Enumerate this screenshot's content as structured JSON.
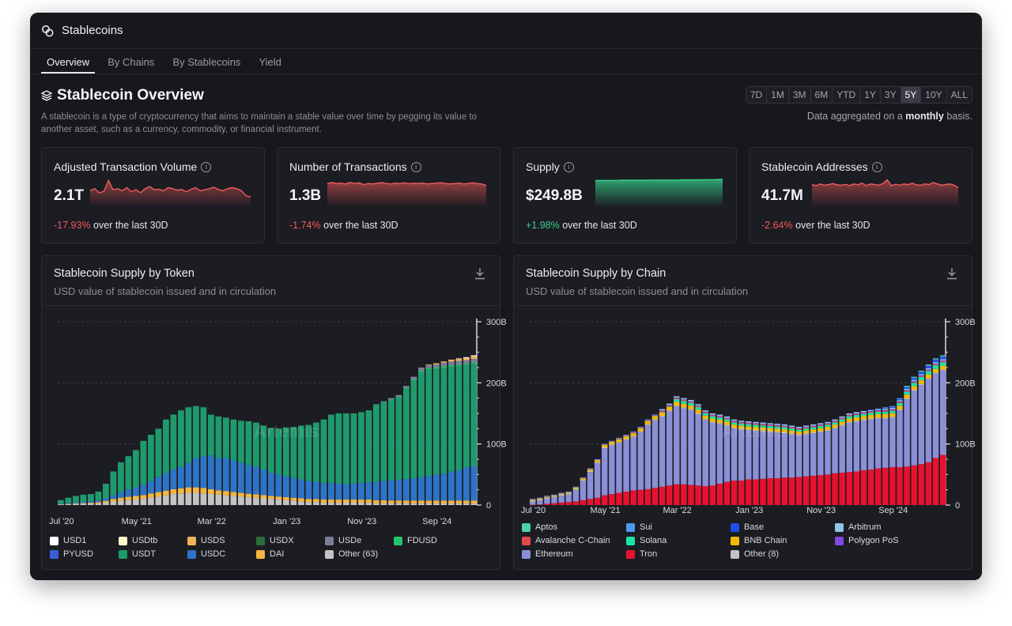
{
  "window": {
    "title": "Stablecoins"
  },
  "tabs": [
    "Overview",
    "By Chains",
    "By Stablecoins",
    "Yield"
  ],
  "active_tab": "Overview",
  "header": {
    "title": "Stablecoin Overview",
    "description": "A stablecoin is a type of cryptocurrency that aims to maintain a stable value over time by pegging its value to another asset, such as a currency, commodity, or financial instrument.",
    "ranges": [
      "7D",
      "1M",
      "3M",
      "6M",
      "YTD",
      "1Y",
      "3Y",
      "5Y",
      "10Y",
      "ALL"
    ],
    "active_range": "5Y",
    "agg_prefix": "Data aggregated on a",
    "agg_bold": "monthly",
    "agg_suffix": "basis."
  },
  "kpis": [
    {
      "title": "Adjusted Transaction Volume",
      "value": "2.1T",
      "change": "-17.93%",
      "suffix": "over the last 30D",
      "trend": "neg",
      "spark": [
        0.45,
        0.55,
        0.35,
        0.42,
        0.95,
        0.5,
        0.55,
        0.45,
        0.6,
        0.4,
        0.5,
        0.35,
        0.55,
        0.65,
        0.5,
        0.52,
        0.45,
        0.6,
        0.55,
        0.48,
        0.5,
        0.4,
        0.52,
        0.6,
        0.45,
        0.5,
        0.55,
        0.62,
        0.5,
        0.45,
        0.55,
        0.6,
        0.55,
        0.45,
        0.2,
        0.15
      ]
    },
    {
      "title": "Number of Transactions",
      "value": "1.3B",
      "change": "-1.74%",
      "suffix": "over the last 30D",
      "trend": "neg",
      "spark": [
        0.8,
        0.85,
        0.8,
        0.82,
        0.78,
        0.85,
        0.8,
        0.83,
        0.75,
        0.8,
        0.78,
        0.82,
        0.85,
        0.8,
        0.78,
        0.82,
        0.8,
        0.84,
        0.79,
        0.82,
        0.8,
        0.83,
        0.78,
        0.8,
        0.82,
        0.84,
        0.8,
        0.78,
        0.8,
        0.82,
        0.78,
        0.8,
        0.84,
        0.8,
        0.78,
        0.7
      ]
    },
    {
      "title": "Supply",
      "value": "$249.8B",
      "change": "+1.98%",
      "suffix": "over the last 30D",
      "trend": "pos",
      "spark": [
        0.95,
        0.95,
        0.95,
        0.95,
        0.95,
        0.95,
        0.95,
        0.96,
        0.96,
        0.96,
        0.96,
        0.96,
        0.96,
        0.96,
        0.96,
        0.97,
        0.97,
        0.97,
        0.97,
        0.97,
        0.97,
        0.97,
        0.97,
        0.97,
        0.98,
        0.98,
        0.98,
        0.98,
        0.98,
        0.98,
        0.99,
        0.99,
        0.99,
        0.99,
        1.0,
        1.0
      ]
    },
    {
      "title": "Stablecoin Addresses",
      "value": "41.7M",
      "change": "-2.64%",
      "suffix": "over the last 30D",
      "trend": "neg",
      "spark": [
        0.75,
        0.7,
        0.78,
        0.72,
        0.75,
        0.8,
        0.74,
        0.72,
        0.76,
        0.7,
        0.78,
        0.74,
        0.82,
        0.7,
        0.78,
        0.75,
        0.72,
        0.8,
        0.98,
        0.7,
        0.76,
        0.72,
        0.78,
        0.75,
        0.82,
        0.74,
        0.72,
        0.78,
        0.75,
        0.85,
        0.78,
        0.72,
        0.75,
        0.78,
        0.72,
        0.6
      ]
    }
  ],
  "charts": {
    "token": {
      "title": "Stablecoin Supply by Token",
      "subtitle": "USD value of stablecoin issued and in circulation"
    },
    "chain": {
      "title": "Stablecoin Supply by Chain",
      "subtitle": "USD value of stablecoin issued and in circulation"
    }
  },
  "chart_data": [
    {
      "type": "bar",
      "title": "Stablecoin Supply by Token",
      "stacked": true,
      "x_tick_labels": [
        "Jul '20",
        "May '21",
        "Mar '22",
        "Jan '23",
        "Nov '23",
        "Sep '24"
      ],
      "y_tick_labels": [
        "0",
        "100B",
        "200B",
        "300B"
      ],
      "ylim": [
        0,
        300
      ],
      "unit": "B USD",
      "totals": [
        8,
        12,
        15,
        17,
        18,
        22,
        35,
        55,
        70,
        80,
        90,
        105,
        115,
        125,
        140,
        148,
        155,
        160,
        162,
        160,
        148,
        145,
        143,
        140,
        138,
        137,
        135,
        130,
        126,
        125,
        127,
        128,
        130,
        131,
        135,
        140,
        148,
        150,
        150,
        150,
        152,
        155,
        165,
        170,
        175,
        180,
        195,
        210,
        225,
        230,
        232,
        235,
        238,
        240,
        242,
        245
      ],
      "series": [
        {
          "name": "USD1",
          "color": "#ffffff"
        },
        {
          "name": "USDtb",
          "color": "#fff3c9"
        },
        {
          "name": "USDS",
          "color": "#f2b25a"
        },
        {
          "name": "USDX",
          "color": "#2d6e3b"
        },
        {
          "name": "USDe",
          "color": "#7b7f96"
        },
        {
          "name": "FDUSD",
          "color": "#22c76d"
        },
        {
          "name": "PYUSD",
          "color": "#3b5bdb"
        },
        {
          "name": "USDT",
          "color": "#1f9a6c"
        },
        {
          "name": "USDC",
          "color": "#2d74c7"
        },
        {
          "name": "DAI",
          "color": "#f4b63f"
        },
        {
          "name": "Other (63)",
          "color": "#c3c3c3"
        }
      ],
      "usdc": [
        0.5,
        1,
        1.5,
        2,
        2.5,
        3,
        4,
        6,
        9,
        12,
        14,
        17,
        20,
        25,
        29,
        32,
        35,
        40,
        48,
        52,
        55,
        53,
        54,
        51,
        49,
        47,
        45,
        42,
        38,
        36,
        34,
        33,
        31,
        29,
        28,
        27,
        27,
        26,
        25,
        26,
        27,
        28,
        30,
        32,
        33,
        34,
        35,
        36,
        38,
        40,
        42,
        44,
        47,
        50,
        54,
        56
      ],
      "dai": [
        0.5,
        0.8,
        1,
        1.2,
        1.5,
        2,
        3,
        4,
        5,
        5.5,
        6,
        6.5,
        7,
        7.2,
        7.5,
        8,
        8.5,
        9,
        9,
        9,
        8,
        7,
        7,
        6.5,
        6,
        5.5,
        5.5,
        5.2,
        5,
        5,
        5,
        5,
        5,
        5,
        5,
        5,
        5,
        5,
        5,
        5,
        5,
        5,
        5,
        5,
        4.5,
        4.5,
        4.5,
        4.5,
        4.5,
        4.5,
        4.5,
        4.5,
        4.5,
        4.5,
        4.5,
        4.5
      ],
      "other": [
        1,
        1.5,
        2,
        2,
        2.5,
        3,
        4,
        6,
        7,
        8,
        9,
        10,
        12,
        14,
        16,
        18,
        19,
        20,
        20,
        19,
        18,
        17,
        16,
        15,
        14,
        13,
        12,
        11,
        10,
        9,
        8,
        7,
        6,
        5,
        5,
        4,
        4,
        4,
        4,
        4,
        4,
        4,
        3,
        3,
        3,
        3,
        3,
        3,
        3,
        3,
        3,
        3,
        3,
        3,
        3,
        3
      ],
      "fdusd": [
        0,
        0,
        0,
        0,
        0,
        0,
        0,
        0,
        0,
        0,
        0,
        0,
        0,
        0,
        0,
        0,
        0,
        0,
        0,
        0,
        0,
        0,
        0,
        0,
        0,
        0,
        0,
        0,
        0,
        0,
        0,
        0,
        0,
        0,
        0,
        0,
        0,
        0,
        0,
        0,
        0,
        0,
        0,
        0,
        1,
        1,
        1,
        2,
        2,
        2,
        2,
        2,
        2,
        2,
        2,
        2
      ],
      "usde": [
        0,
        0,
        0,
        0,
        0,
        0,
        0,
        0,
        0,
        0,
        0,
        0,
        0,
        0,
        0,
        0,
        0,
        0,
        0,
        0,
        0,
        0,
        0,
        0,
        0,
        0,
        0,
        0,
        0,
        0,
        0,
        0,
        0,
        0,
        0,
        0,
        0,
        0,
        0,
        0,
        0,
        0,
        0,
        1,
        2,
        3,
        3,
        4,
        5,
        5,
        5,
        6,
        6,
        6,
        6,
        6
      ],
      "usds": [
        0,
        0,
        0,
        0,
        0,
        0,
        0,
        0,
        0,
        0,
        0,
        0,
        0,
        0,
        0,
        0,
        0,
        0,
        0,
        0,
        0,
        0,
        0,
        0,
        0,
        0,
        0,
        0,
        0,
        0,
        0,
        0,
        0,
        0,
        0,
        0,
        0,
        0,
        0,
        0,
        0,
        0,
        0,
        0,
        0,
        0,
        0,
        0,
        0,
        1,
        2,
        2,
        3,
        3,
        3,
        4
      ],
      "usdtb": [
        0,
        0,
        0,
        0,
        0,
        0,
        0,
        0,
        0,
        0,
        0,
        0,
        0,
        0,
        0,
        0,
        0,
        0,
        0,
        0,
        0,
        0,
        0,
        0,
        0,
        0,
        0,
        0,
        0,
        0,
        0,
        0,
        0,
        0,
        0,
        0,
        0,
        0,
        0,
        0,
        0,
        0,
        0,
        0,
        0,
        0,
        0,
        0,
        0,
        0,
        0,
        0,
        0,
        1,
        1,
        1
      ],
      "usd1": [
        0,
        0,
        0,
        0,
        0,
        0,
        0,
        0,
        0,
        0,
        0,
        0,
        0,
        0,
        0,
        0,
        0,
        0,
        0,
        0,
        0,
        0,
        0,
        0,
        0,
        0,
        0,
        0,
        0,
        0,
        0,
        0,
        0,
        0,
        0,
        0,
        0,
        0,
        0,
        0,
        0,
        0,
        0,
        0,
        0,
        0,
        0,
        0,
        0,
        0,
        0,
        0,
        0,
        0,
        1,
        1
      ]
    },
    {
      "type": "bar",
      "title": "Stablecoin Supply by Chain",
      "stacked": true,
      "x_tick_labels": [
        "Jul '20",
        "May '21",
        "Mar '22",
        "Jan '23",
        "Nov '23",
        "Sep '24"
      ],
      "y_tick_labels": [
        "0",
        "100B",
        "200B",
        "300B"
      ],
      "ylim": [
        0,
        300
      ],
      "unit": "B USD",
      "totals": [
        10,
        12,
        15,
        17,
        20,
        22,
        30,
        45,
        60,
        75,
        100,
        105,
        110,
        115,
        120,
        128,
        140,
        148,
        157,
        166,
        178,
        175,
        172,
        165,
        155,
        150,
        148,
        145,
        140,
        138,
        137,
        136,
        135,
        134,
        133,
        132,
        130,
        128,
        130,
        132,
        134,
        136,
        140,
        145,
        150,
        152,
        154,
        156,
        158,
        160,
        162,
        175,
        195,
        210,
        220,
        230,
        240,
        245
      ],
      "series": [
        {
          "name": "Aptos",
          "color": "#4fd1a5"
        },
        {
          "name": "Sui",
          "color": "#4c9bf0"
        },
        {
          "name": "Base",
          "color": "#1f4fe8"
        },
        {
          "name": "Arbitrum",
          "color": "#8fc5e8"
        },
        {
          "name": "Avalanche C-Chain",
          "color": "#e24a4a"
        },
        {
          "name": "Solana",
          "color": "#19e3a6"
        },
        {
          "name": "BNB Chain",
          "color": "#f2b90c"
        },
        {
          "name": "Polygon PoS",
          "color": "#8247e5"
        },
        {
          "name": "Ethereum",
          "color": "#8a8fd6"
        },
        {
          "name": "Tron",
          "color": "#e8112d"
        },
        {
          "name": "Other (8)",
          "color": "#c3c3c3"
        }
      ],
      "tron": [
        0.5,
        1,
        2,
        3,
        4,
        5,
        6,
        8,
        10,
        12,
        16,
        18,
        20,
        22,
        24,
        25,
        26,
        28,
        30,
        32,
        34,
        34,
        33,
        32,
        31,
        32,
        35,
        38,
        40,
        40,
        42,
        42,
        43,
        44,
        44,
        45,
        45,
        46,
        47,
        48,
        49,
        50,
        52,
        53,
        54,
        55,
        57,
        58,
        60,
        61,
        62,
        62,
        63,
        65,
        67,
        70,
        77,
        82
      ]
    }
  ],
  "legend_token": [
    "USD1",
    "USDtb",
    "USDS",
    "USDX",
    "USDe",
    "FDUSD",
    "PYUSD",
    "USDT",
    "USDC",
    "DAI",
    "Other (63)"
  ],
  "legend_chain": [
    "Aptos",
    "Sui",
    "Base",
    "Arbitrum",
    "Avalanche C-Chain",
    "Solana",
    "BNB Chain",
    "Polygon PoS",
    "Ethereum",
    "Tron",
    "Other (8)"
  ],
  "watermark": "Artemis",
  "colors": {
    "bg": "#17171d",
    "card": "#1c1c23",
    "neg": "#f05b5b",
    "pos": "#37d08a"
  }
}
